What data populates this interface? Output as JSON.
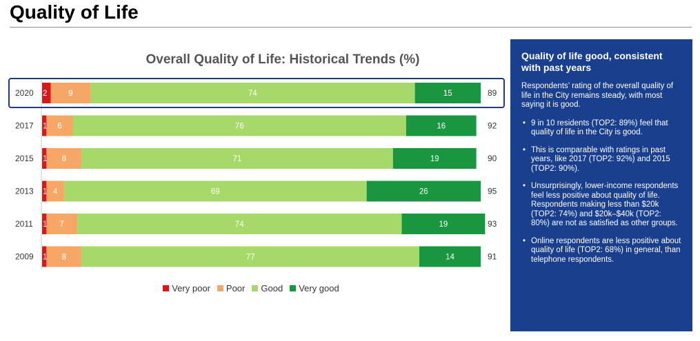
{
  "page": {
    "heading": "Quality of Life"
  },
  "chart_data": {
    "type": "bar",
    "orientation": "horizontal",
    "stacked": true,
    "title": "Overall Quality of Life: Historical Trends (%)",
    "categories": [
      "2020",
      "2017",
      "2015",
      "2013",
      "2011",
      "2009"
    ],
    "highlighted_category": "2020",
    "series": [
      {
        "name": "Very poor",
        "color": "#d7191c",
        "values": [
          2,
          1,
          1,
          1,
          1,
          1
        ]
      },
      {
        "name": "Poor",
        "color": "#f6a665",
        "values": [
          9,
          6,
          8,
          4,
          7,
          8
        ]
      },
      {
        "name": "Good",
        "color": "#a6d96a",
        "values": [
          74,
          76,
          71,
          69,
          74,
          77
        ]
      },
      {
        "name": "Very good",
        "color": "#1a9641",
        "values": [
          15,
          16,
          19,
          26,
          19,
          14
        ]
      }
    ],
    "top2_totals": [
      89,
      92,
      90,
      95,
      93,
      91
    ],
    "xlim": [
      0,
      100
    ],
    "legend_position": "bottom"
  },
  "side_panel": {
    "title": "Quality of life good, consistent with past years",
    "intro": "Respondents’ rating of the overall quality of life in the City remains steady, with most saying it is good.",
    "bullets": [
      "9 in 10 residents (TOP2: 89%) feel that quality of life in the City is good.",
      "This is comparable with ratings in past years, like 2017 (TOP2: 92%) and 2015 (TOP2: 90%).",
      "Unsurprisingly, lower-income respondents feel less positive about quality of life. Respondents making less than $20k (TOP2: 74%) and $20k–$40k (TOP2: 80%) are not as satisfied as other groups.",
      "Online respondents are less positive about quality of life (TOP2: 68%) in general, than telephone respondents."
    ],
    "background_color": "#1a3f8f"
  }
}
